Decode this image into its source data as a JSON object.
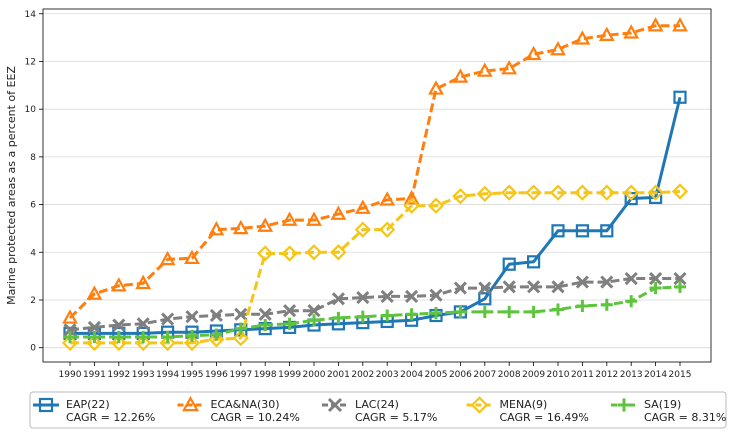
{
  "chart_data": {
    "type": "line",
    "title": "",
    "xlabel": "",
    "ylabel": "Marine protected areas as a percent of EEZ",
    "ylim": [
      -0.6,
      14.2
    ],
    "yticks": [
      0,
      2,
      4,
      6,
      8,
      10,
      12,
      14
    ],
    "grid": "horizontal",
    "legend_position": "bottom",
    "x": [
      1990,
      1991,
      1992,
      1993,
      1994,
      1995,
      1996,
      1997,
      1998,
      1999,
      2000,
      2001,
      2002,
      2003,
      2004,
      2005,
      2006,
      2007,
      2008,
      2009,
      2010,
      2011,
      2012,
      2013,
      2014,
      2015
    ],
    "series": [
      {
        "name": "EAP(22)",
        "cagr": "CAGR = 12.26%",
        "color": "#1f77b4",
        "marker": "square-icon",
        "dash": "solid",
        "values": [
          0.6,
          0.6,
          0.6,
          0.6,
          0.65,
          0.65,
          0.7,
          0.75,
          0.8,
          0.85,
          0.95,
          1.0,
          1.05,
          1.1,
          1.15,
          1.35,
          1.5,
          2.05,
          3.5,
          3.6,
          4.9,
          4.9,
          4.9,
          6.25,
          6.3,
          10.5
        ]
      },
      {
        "name": "ECA&NA(30)",
        "cagr": "CAGR = 10.24%",
        "color": "#ff7f0e",
        "marker": "triangle-icon",
        "dash": "dashed",
        "values": [
          1.25,
          2.25,
          2.6,
          2.7,
          3.7,
          3.75,
          4.95,
          5.0,
          5.1,
          5.35,
          5.35,
          5.6,
          5.85,
          6.2,
          6.25,
          10.85,
          11.35,
          11.6,
          11.7,
          12.3,
          12.5,
          12.95,
          13.1,
          13.2,
          13.5,
          13.5
        ]
      },
      {
        "name": "LAC(24)",
        "cagr": "CAGR = 5.17%",
        "color": "#7f7f7f",
        "marker": "x-icon",
        "dash": "dashed",
        "values": [
          0.75,
          0.85,
          0.95,
          1.0,
          1.2,
          1.3,
          1.35,
          1.4,
          1.4,
          1.55,
          1.55,
          2.05,
          2.1,
          2.15,
          2.15,
          2.2,
          2.5,
          2.5,
          2.55,
          2.55,
          2.55,
          2.75,
          2.75,
          2.9,
          2.9,
          2.9
        ]
      },
      {
        "name": "MENA(9)",
        "cagr": "CAGR = 16.49%",
        "color": "#f5c518",
        "marker": "diamond-icon",
        "dash": "dashed",
        "values": [
          0.2,
          0.2,
          0.2,
          0.2,
          0.2,
          0.2,
          0.35,
          0.4,
          3.95,
          3.95,
          4.0,
          4.0,
          4.95,
          4.95,
          5.95,
          5.95,
          6.35,
          6.45,
          6.5,
          6.5,
          6.5,
          6.5,
          6.5,
          6.5,
          6.5,
          6.55
        ]
      },
      {
        "name": "SA(19)",
        "cagr": "CAGR = 8.31%",
        "color": "#5ec43e",
        "marker": "plus-icon",
        "dash": "dashed",
        "values": [
          0.45,
          0.45,
          0.45,
          0.45,
          0.45,
          0.5,
          0.55,
          0.8,
          0.95,
          1.0,
          1.15,
          1.25,
          1.3,
          1.35,
          1.4,
          1.45,
          1.5,
          1.5,
          1.5,
          1.5,
          1.6,
          1.75,
          1.8,
          1.95,
          2.5,
          2.55
        ]
      }
    ]
  }
}
